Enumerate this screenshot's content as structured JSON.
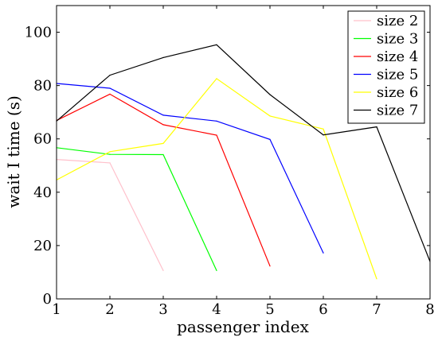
{
  "chart_data": {
    "type": "line",
    "xlabel": "passenger index",
    "ylabel": "wait I time (s)",
    "xlim": [
      1,
      8
    ],
    "ylim": [
      0,
      110
    ],
    "xticks": [
      1,
      2,
      3,
      4,
      5,
      6,
      7,
      8
    ],
    "yticks": [
      0,
      20,
      40,
      60,
      80,
      100
    ],
    "legend_position": "top-right",
    "grid": false,
    "series": [
      {
        "name": "size 2",
        "color": "#ffc0cb",
        "x": [
          1,
          2,
          3
        ],
        "y": [
          52.3,
          51.0,
          10.6
        ]
      },
      {
        "name": "size 3",
        "color": "#00ff00",
        "x": [
          1,
          2,
          3,
          4
        ],
        "y": [
          56.7,
          54.2,
          54.1,
          10.6
        ]
      },
      {
        "name": "size 4",
        "color": "#ff0000",
        "x": [
          1,
          2,
          3,
          4,
          5
        ],
        "y": [
          66.9,
          76.8,
          65.3,
          61.4,
          12.3
        ]
      },
      {
        "name": "size 5",
        "color": "#0000ff",
        "x": [
          1,
          2,
          3,
          4,
          5,
          6
        ],
        "y": [
          80.8,
          79.0,
          68.9,
          66.7,
          59.8,
          17.2
        ]
      },
      {
        "name": "size 6",
        "color": "#ffff00",
        "x": [
          1,
          2,
          3,
          4,
          5,
          6,
          7
        ],
        "y": [
          44.6,
          55.2,
          58.3,
          82.6,
          68.6,
          63.7,
          7.5
        ]
      },
      {
        "name": "size 7",
        "color": "#000000",
        "x": [
          1,
          2,
          3,
          4,
          5,
          6,
          7,
          8
        ],
        "y": [
          66.7,
          83.9,
          90.5,
          95.3,
          76.6,
          61.5,
          64.5,
          14.0
        ]
      }
    ]
  }
}
